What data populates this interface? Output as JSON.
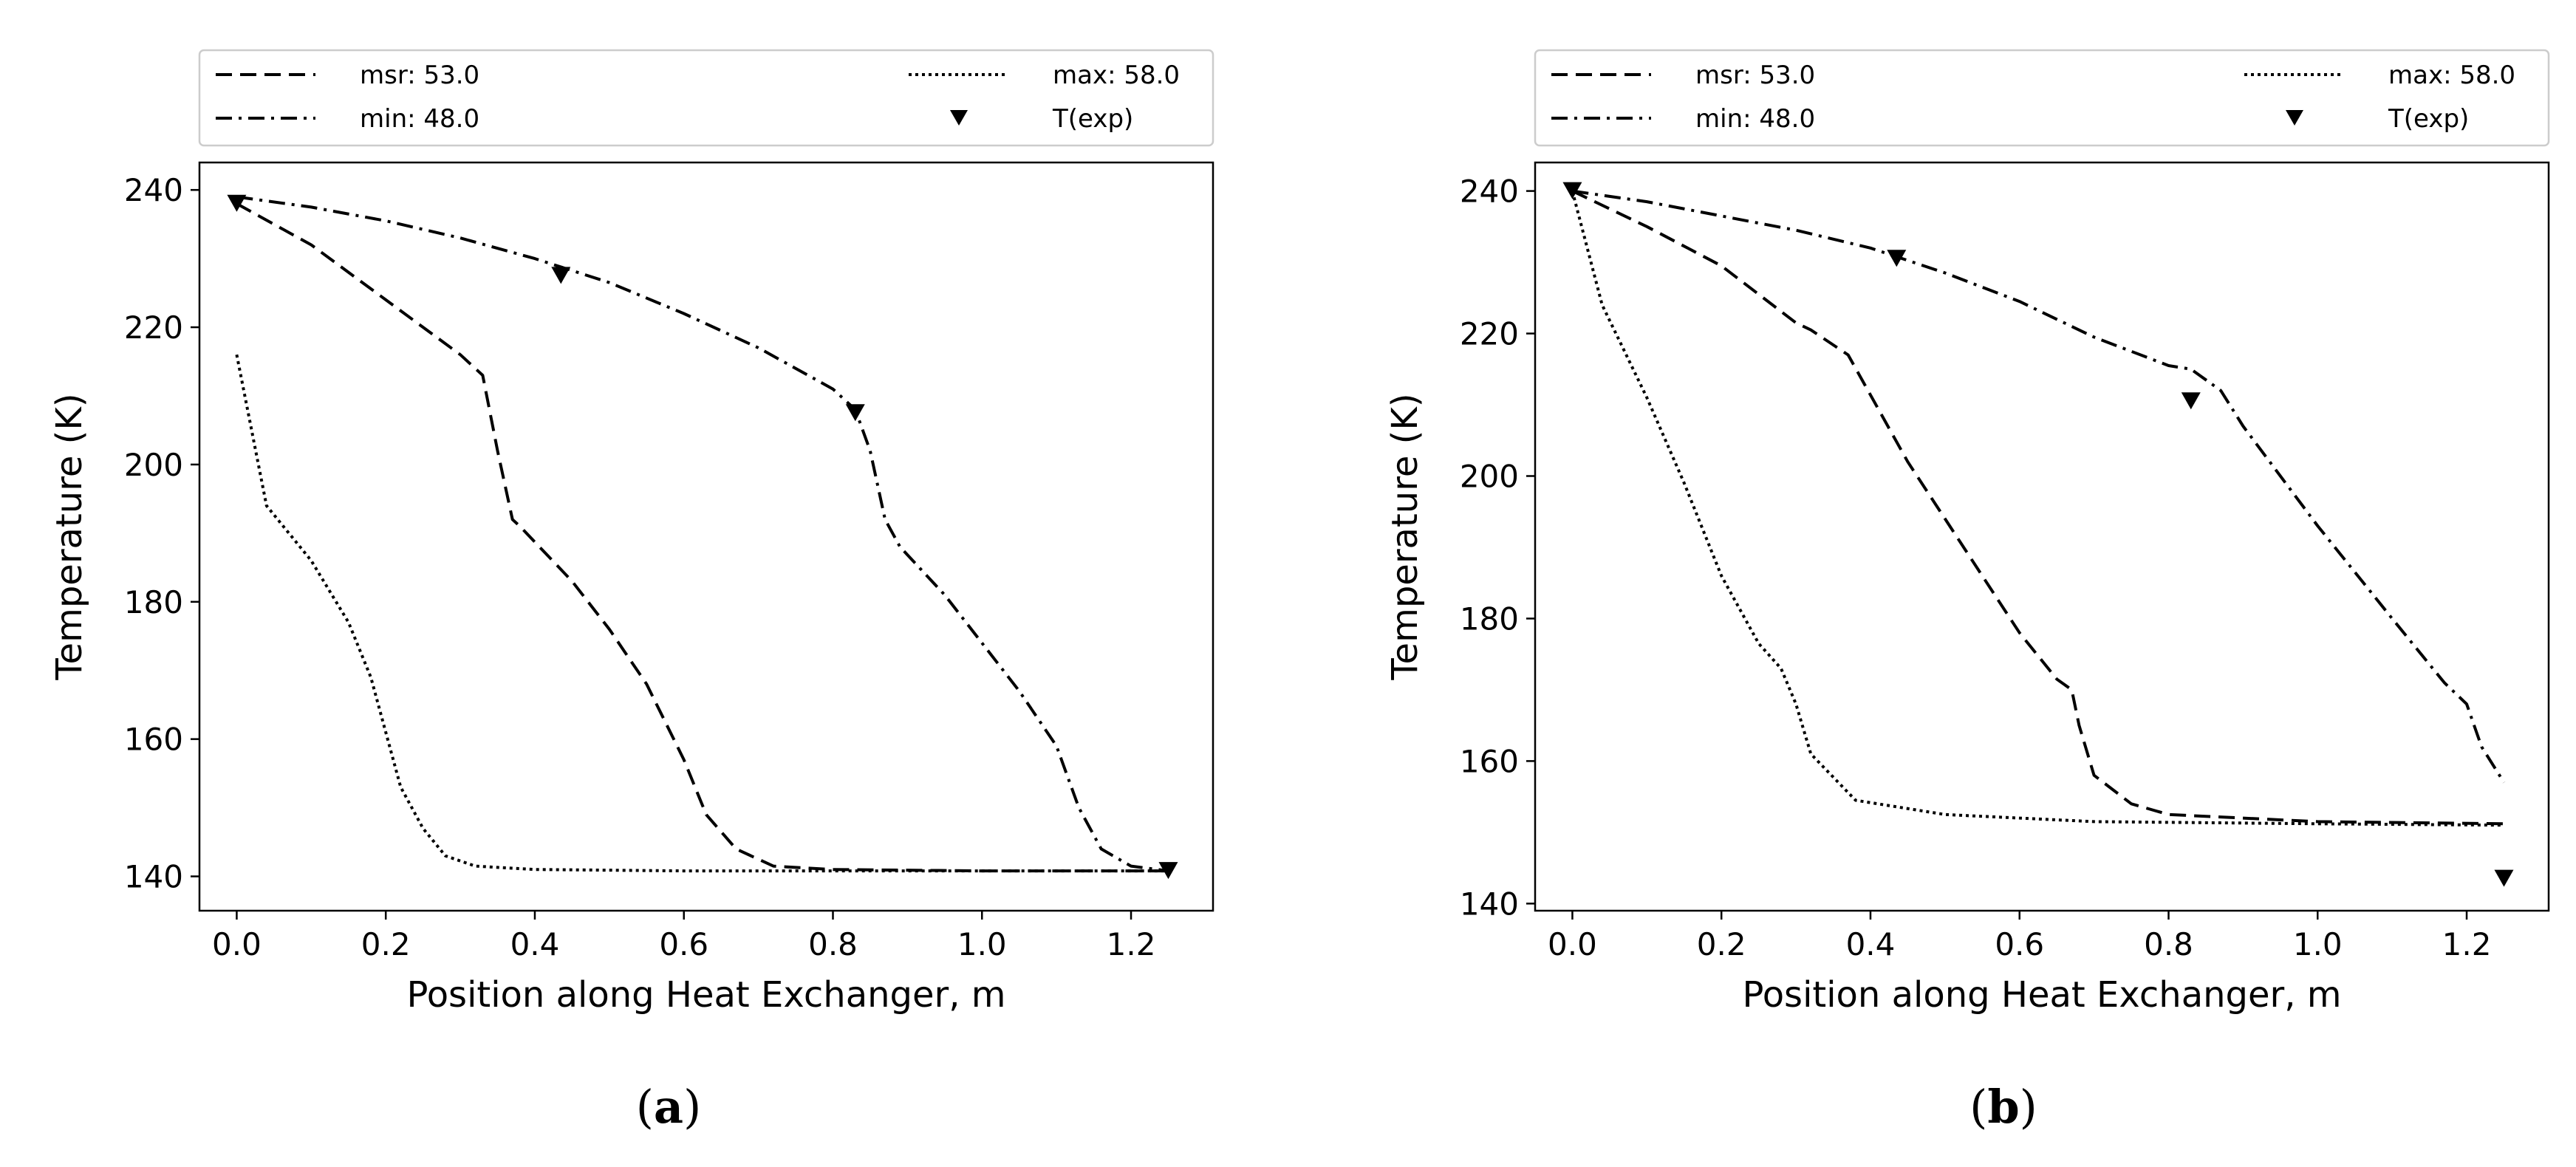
{
  "chart_data": [
    {
      "type": "line",
      "panel": "a",
      "xlabel": "Position along Heat Exchanger, m",
      "ylabel": "Temperature (K)",
      "xlim": [
        -0.05,
        1.31
      ],
      "ylim": [
        135,
        244
      ],
      "xticks": [
        0.0,
        0.2,
        0.4,
        0.6,
        0.8,
        1.0,
        1.2
      ],
      "xtick_labels": [
        "0.0",
        "0.2",
        "0.4",
        "0.6",
        "0.8",
        "1.0",
        "1.2"
      ],
      "yticks": [
        140,
        160,
        180,
        200,
        220,
        240
      ],
      "ytick_labels": [
        "140",
        "160",
        "180",
        "200",
        "220",
        "240"
      ],
      "grid": false,
      "legend_position": "above, two columns",
      "series": [
        {
          "name": "msr: 53.0",
          "style": "dashed",
          "x": [
            0.0,
            0.1,
            0.2,
            0.3,
            0.33,
            0.35,
            0.37,
            0.38,
            0.45,
            0.5,
            0.55,
            0.6,
            0.63,
            0.67,
            0.72,
            0.8,
            1.0,
            1.25
          ],
          "y": [
            238,
            232,
            224,
            216,
            213,
            202,
            192,
            191,
            183,
            176,
            168,
            157,
            149,
            144,
            141.5,
            141,
            140.8,
            140.8
          ]
        },
        {
          "name": "min: 48.0",
          "style": "dashdot",
          "x": [
            0.0,
            0.1,
            0.2,
            0.3,
            0.4,
            0.5,
            0.6,
            0.7,
            0.8,
            0.83,
            0.85,
            0.87,
            0.89,
            0.95,
            1.0,
            1.05,
            1.1,
            1.13,
            1.16,
            1.2,
            1.25
          ],
          "y": [
            239,
            237.5,
            235.5,
            233,
            230,
            226.5,
            222,
            217,
            211,
            208,
            202,
            192,
            188,
            181,
            174,
            167,
            159,
            150,
            144,
            141.5,
            140.8
          ]
        },
        {
          "name": "max: 58.0",
          "style": "dotted",
          "x": [
            0.0,
            0.02,
            0.04,
            0.1,
            0.15,
            0.18,
            0.2,
            0.22,
            0.25,
            0.28,
            0.32,
            0.4,
            0.6,
            0.8,
            1.0,
            1.25
          ],
          "y": [
            216,
            205,
            194,
            186,
            177,
            169,
            161,
            153,
            147,
            143,
            141.5,
            141,
            140.8,
            140.8,
            140.8,
            140.8
          ]
        },
        {
          "name": "T(exp)",
          "style": "markers",
          "x": [
            0.0,
            0.435,
            0.83,
            1.25
          ],
          "y": [
            238,
            227.5,
            207.5,
            140.8
          ]
        }
      ]
    },
    {
      "type": "line",
      "panel": "b",
      "xlabel": "Position along Heat Exchanger, m",
      "ylabel": "Temperature (K)",
      "xlim": [
        -0.05,
        1.31
      ],
      "ylim": [
        139,
        244
      ],
      "xticks": [
        0.0,
        0.2,
        0.4,
        0.6,
        0.8,
        1.0,
        1.2
      ],
      "xtick_labels": [
        "0.0",
        "0.2",
        "0.4",
        "0.6",
        "0.8",
        "1.0",
        "1.2"
      ],
      "yticks": [
        140,
        160,
        180,
        200,
        220,
        240
      ],
      "ytick_labels": [
        "140",
        "160",
        "180",
        "200",
        "220",
        "240"
      ],
      "grid": false,
      "legend_position": "above, two columns",
      "series": [
        {
          "name": "msr: 53.0",
          "style": "dashed",
          "x": [
            0.0,
            0.1,
            0.2,
            0.3,
            0.32,
            0.37,
            0.45,
            0.5,
            0.55,
            0.6,
            0.65,
            0.67,
            0.68,
            0.7,
            0.75,
            0.8,
            1.0,
            1.25
          ],
          "y": [
            240,
            235,
            229.5,
            221.5,
            220.5,
            217,
            202,
            194,
            186,
            178,
            171.5,
            170,
            165,
            158,
            154,
            152.5,
            151.5,
            151.2
          ]
        },
        {
          "name": "min: 48.0",
          "style": "dashdot",
          "x": [
            0.0,
            0.1,
            0.2,
            0.3,
            0.4,
            0.5,
            0.6,
            0.7,
            0.8,
            0.83,
            0.87,
            0.9,
            1.0,
            1.1,
            1.17,
            1.2,
            1.22,
            1.25
          ],
          "y": [
            240,
            238.5,
            236.5,
            234.5,
            232,
            228.5,
            224.5,
            219.5,
            215.5,
            215,
            212,
            207,
            193,
            180,
            171,
            168,
            162,
            157
          ]
        },
        {
          "name": "max: 58.0",
          "style": "dotted",
          "x": [
            0.0,
            0.02,
            0.04,
            0.1,
            0.15,
            0.2,
            0.25,
            0.28,
            0.3,
            0.32,
            0.38,
            0.5,
            0.7,
            1.0,
            1.25
          ],
          "y": [
            240,
            232,
            224,
            211,
            199,
            186,
            176.5,
            173,
            168,
            161,
            154.5,
            152.5,
            151.5,
            151.2,
            151
          ],
          "_note": ""
        },
        {
          "name": "T(exp)",
          "style": "markers",
          "x": [
            0.0,
            0.435,
            0.83,
            1.25
          ],
          "y": [
            240,
            230.5,
            210.5,
            143.5
          ]
        }
      ]
    }
  ],
  "legend": {
    "entries": [
      {
        "label": "msr: 53.0",
        "style": "dashed"
      },
      {
        "label": "min: 48.0",
        "style": "dashdot"
      },
      {
        "label": "max: 58.0",
        "style": "dotted"
      },
      {
        "label": "T(exp)",
        "style": "markers"
      }
    ]
  },
  "captions": [
    {
      "open": "(",
      "letter": "a",
      "close": ")"
    },
    {
      "open": "(",
      "letter": "b",
      "close": ")"
    }
  ],
  "colors": {
    "line": "#000000",
    "axis": "#000000",
    "legend_border": "#cccccc",
    "background": "#ffffff"
  }
}
